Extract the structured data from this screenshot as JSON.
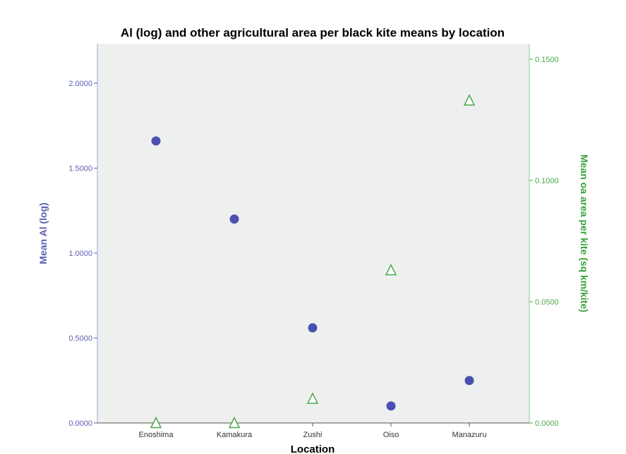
{
  "chart_data": {
    "type": "scatter",
    "title": "Al (log) and other agricultural area per black kite means by location",
    "xlabel": "Location",
    "ylabel_left": "Mean Al (log)",
    "ylabel_right": "Mean oa area per kite (sq km/kite)",
    "categories": [
      "Enoshima",
      "Kamakura",
      "Zushi",
      "Oiso",
      "Manazuru"
    ],
    "y_left": {
      "lim": [
        0,
        2.0
      ],
      "ticks": [
        0,
        0.5,
        1.0,
        1.5,
        2.0
      ],
      "tick_labels": [
        "0.0000",
        "0.5000",
        "1.0000",
        "1.5000",
        "2.0000"
      ],
      "color": "#5b5fb3"
    },
    "y_right": {
      "lim": [
        0,
        0.15
      ],
      "ticks": [
        0,
        0.05,
        0.1,
        0.15
      ],
      "tick_labels": [
        "0.0000",
        "0.0500",
        "0.1000",
        "0.1500"
      ],
      "color": "#4aa84a"
    },
    "series": [
      {
        "axis": "left",
        "marker": "circle",
        "color": "#4a50b0",
        "values": [
          1.66,
          1.2,
          0.56,
          0.1,
          0.25
        ]
      },
      {
        "axis": "right",
        "marker": "triangle-open",
        "color": "#4aa84a",
        "values": [
          0.0,
          0.0,
          0.01,
          0.063,
          0.133
        ]
      }
    ],
    "plot_background": "#eef0ef",
    "grid": false
  }
}
